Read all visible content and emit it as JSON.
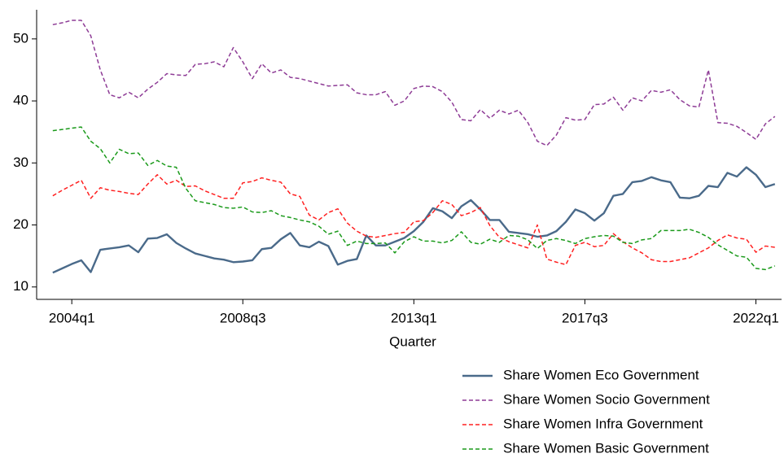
{
  "chart_data": {
    "type": "line",
    "x_label": "Quarter",
    "x": [
      174,
      175,
      176,
      177,
      178,
      179,
      180,
      181,
      182,
      183,
      184,
      185,
      186,
      187,
      188,
      189,
      190,
      191,
      192,
      193,
      194,
      195,
      196,
      197,
      198,
      199,
      200,
      201,
      202,
      203,
      204,
      205,
      206,
      207,
      208,
      209,
      210,
      211,
      212,
      213,
      214,
      215,
      216,
      217,
      218,
      219,
      220,
      221,
      222,
      223,
      224,
      225,
      226,
      227,
      228,
      229,
      230,
      231,
      232,
      233,
      234,
      235,
      236,
      237,
      238,
      239,
      240,
      241,
      242,
      243,
      244,
      245,
      246,
      247,
      248,
      249,
      250
    ],
    "xlim": [
      172.3,
      250.7
    ],
    "xticks": [
      {
        "value": 176,
        "label": "2004q1"
      },
      {
        "value": 194,
        "label": "2008q3"
      },
      {
        "value": 212,
        "label": "2013q1"
      },
      {
        "value": 230,
        "label": "2017q3"
      },
      {
        "value": 248,
        "label": "2022q1"
      }
    ],
    "ylim": [
      8,
      54.7
    ],
    "yticks": [
      10,
      20,
      30,
      40,
      50
    ],
    "grid": false,
    "legend": "bottom-right",
    "series": [
      {
        "name": "Share Women Eco Government",
        "color": "#4a6a8a",
        "style": "solid",
        "values": [
          12.3,
          13.0,
          13.7,
          14.3,
          12.4,
          16.0,
          16.2,
          16.4,
          16.7,
          15.6,
          17.8,
          17.9,
          18.5,
          17.1,
          16.2,
          15.4,
          15.0,
          14.6,
          14.4,
          14.0,
          14.1,
          14.3,
          16.1,
          16.3,
          17.7,
          18.7,
          16.7,
          16.4,
          17.3,
          16.6,
          13.6,
          14.2,
          14.5,
          18.3,
          16.7,
          16.7,
          17.3,
          17.9,
          19.0,
          20.5,
          22.7,
          22.2,
          21.1,
          23.0,
          24.0,
          22.5,
          20.8,
          20.8,
          18.9,
          18.7,
          18.5,
          18.1,
          18.3,
          19.0,
          20.5,
          22.5,
          21.9,
          20.7,
          21.9,
          24.7,
          25.0,
          26.9,
          27.1,
          27.7,
          27.2,
          26.9,
          24.4,
          24.3,
          24.7,
          26.3,
          26.1,
          28.4,
          27.8,
          29.3,
          28.1,
          26.1,
          26.6
        ]
      },
      {
        "name": "Share Women Socio Government",
        "color": "#8e3c96",
        "style": "dashed",
        "values": [
          52.3,
          52.6,
          53.0,
          53.0,
          50.5,
          45.0,
          41.0,
          40.5,
          41.4,
          40.5,
          41.9,
          43.0,
          44.4,
          44.2,
          44.1,
          45.9,
          46.0,
          46.3,
          45.5,
          48.6,
          46.3,
          43.6,
          46.0,
          44.5,
          45.0,
          43.8,
          43.6,
          43.2,
          42.8,
          42.4,
          42.5,
          42.6,
          41.3,
          41.0,
          41.0,
          41.5,
          39.3,
          40.0,
          42.0,
          42.4,
          42.3,
          41.5,
          39.8,
          37.0,
          36.8,
          38.6,
          37.2,
          38.5,
          37.9,
          38.5,
          36.5,
          33.5,
          32.8,
          34.5,
          37.3,
          36.9,
          37.0,
          39.4,
          39.5,
          40.6,
          38.5,
          40.5,
          40.0,
          41.7,
          41.4,
          41.8,
          40.2,
          39.2,
          39.0,
          45.0,
          36.5,
          36.4,
          35.9,
          34.9,
          33.8,
          36.3,
          37.5
        ]
      },
      {
        "name": "Share Women Infra Government",
        "color": "#ff2020",
        "style": "dashed",
        "values": [
          24.7,
          25.6,
          26.4,
          27.2,
          24.3,
          26.0,
          25.6,
          25.4,
          25.1,
          24.9,
          26.6,
          28.1,
          26.6,
          27.2,
          26.2,
          26.3,
          25.5,
          24.9,
          24.3,
          24.3,
          26.8,
          27.0,
          27.6,
          27.2,
          26.9,
          25.0,
          24.6,
          21.6,
          20.8,
          22.0,
          22.6,
          20.3,
          19.0,
          18.2,
          18.0,
          18.3,
          18.6,
          18.8,
          20.5,
          20.7,
          22.0,
          23.9,
          23.3,
          21.5,
          22.0,
          22.8,
          19.9,
          18.0,
          17.3,
          16.8,
          16.3,
          20.0,
          14.5,
          14.0,
          13.6,
          16.7,
          17.2,
          16.5,
          16.7,
          18.6,
          17.3,
          16.3,
          15.5,
          14.4,
          14.1,
          14.1,
          14.4,
          14.7,
          15.5,
          16.3,
          17.5,
          18.4,
          17.9,
          17.7,
          15.6,
          16.6,
          16.4
        ]
      },
      {
        "name": "Share Women Basic Government",
        "color": "#1a9a1a",
        "style": "dashed",
        "values": [
          35.2,
          35.4,
          35.6,
          35.8,
          33.5,
          32.3,
          30.0,
          32.2,
          31.5,
          31.6,
          29.6,
          30.4,
          29.5,
          29.3,
          25.9,
          23.9,
          23.6,
          23.3,
          22.8,
          22.7,
          22.9,
          22.1,
          22.0,
          22.3,
          21.5,
          21.2,
          20.8,
          20.5,
          19.8,
          18.5,
          19.0,
          16.7,
          17.4,
          17.0,
          17.0,
          17.1,
          15.5,
          17.3,
          18.1,
          17.4,
          17.4,
          17.1,
          17.5,
          18.9,
          17.2,
          16.9,
          17.7,
          17.2,
          18.3,
          18.2,
          17.6,
          16.2,
          17.5,
          17.8,
          17.5,
          17.0,
          17.8,
          18.1,
          18.3,
          18.2,
          17.2,
          17.0,
          17.6,
          17.8,
          19.1,
          19.1,
          19.1,
          19.3,
          18.8,
          18.0,
          16.8,
          15.9,
          15.0,
          14.8,
          13.0,
          12.8,
          13.4
        ]
      }
    ]
  }
}
